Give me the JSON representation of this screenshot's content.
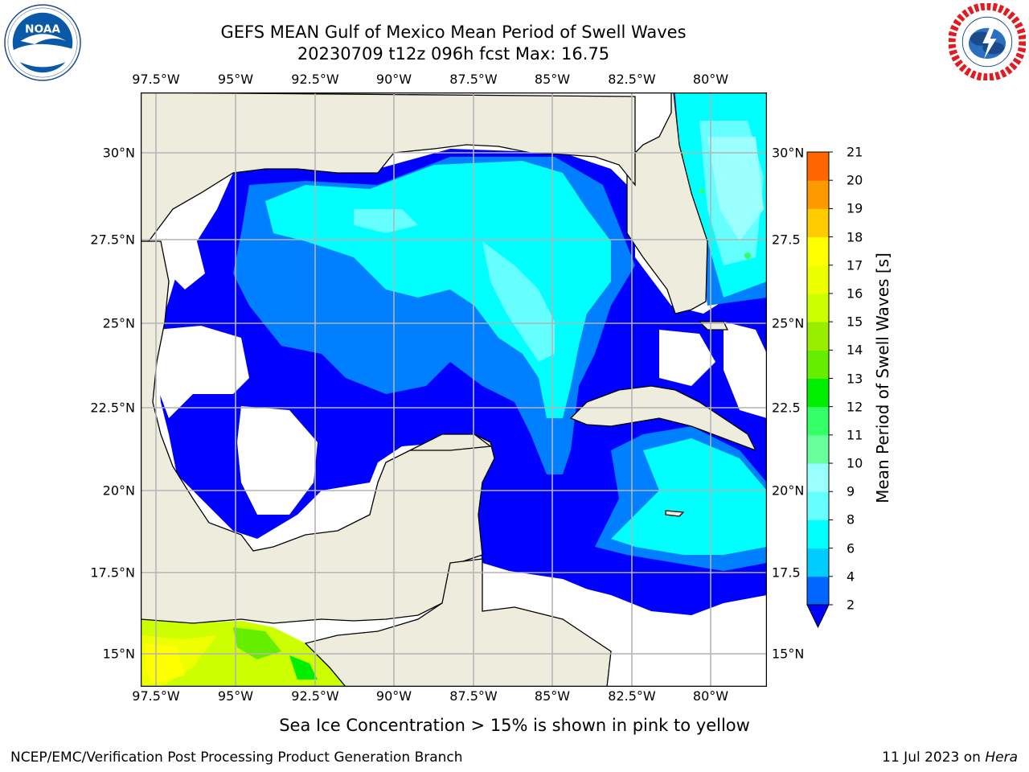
{
  "header": {
    "title_line1": "GEFS MEAN Gulf of Mexico Mean Period of Swell Waves",
    "title_line2": "20230709 t12z 096h fcst   Max: 16.75"
  },
  "logos": {
    "left": "noaa-logo",
    "left_text": "NOAA",
    "left_ring_text": "NATIONAL OCEANIC AND ATMOSPHERIC ADMINISTRATION · U.S. DEPARTMENT OF COMMERCE",
    "right": "nws-logo",
    "right_ring_text": "NATIONAL WEATHER SERVICE"
  },
  "map": {
    "lon_labels": [
      "97.5°W",
      "95°W",
      "92.5°W",
      "90°W",
      "87.5°W",
      "85°W",
      "82.5°W",
      "80°W"
    ],
    "lat_labels_left": [
      "30°N",
      "27.5°N",
      "25°N",
      "22.5°N",
      "20°N",
      "17.5°N",
      "15°N"
    ],
    "lat_labels_right": [
      "30°N",
      "27.5",
      "25°N",
      "22.5",
      "20°N",
      "17.5",
      "15°N"
    ],
    "extent": {
      "lon_min": -98,
      "lon_max": -78.3,
      "lat_min": 14,
      "lat_max": 31.8
    },
    "land_color": "#eeeddd",
    "no_data_color": "#ffffff",
    "grid_color": "#b4b4b4"
  },
  "colorbar": {
    "title": "Mean Period of Swell Waves [s]",
    "levels": [
      "2",
      "4",
      "6",
      "8",
      "9",
      "10",
      "11",
      "12",
      "13",
      "14",
      "15",
      "16",
      "17",
      "18",
      "19",
      "20",
      "21"
    ],
    "colors": [
      "#0066ff",
      "#00ccff",
      "#00ffff",
      "#66ffff",
      "#99ffff",
      "#66ff99",
      "#33ff66",
      "#00ee00",
      "#66ee00",
      "#99ee00",
      "#ccff00",
      "#eeff00",
      "#ffff00",
      "#ffcc00",
      "#ff9900",
      "#ff6600",
      "#ff3300",
      "#ff0000"
    ],
    "extend_color": "#0000ff"
  },
  "note": "Sea Ice Concentration > 15% is shown in pink to yellow",
  "footer": {
    "left": "NCEP/EMC/Verification Post Processing Product Generation Branch",
    "right_prefix": "11 Jul 2023 on ",
    "right_host": "Hera"
  }
}
